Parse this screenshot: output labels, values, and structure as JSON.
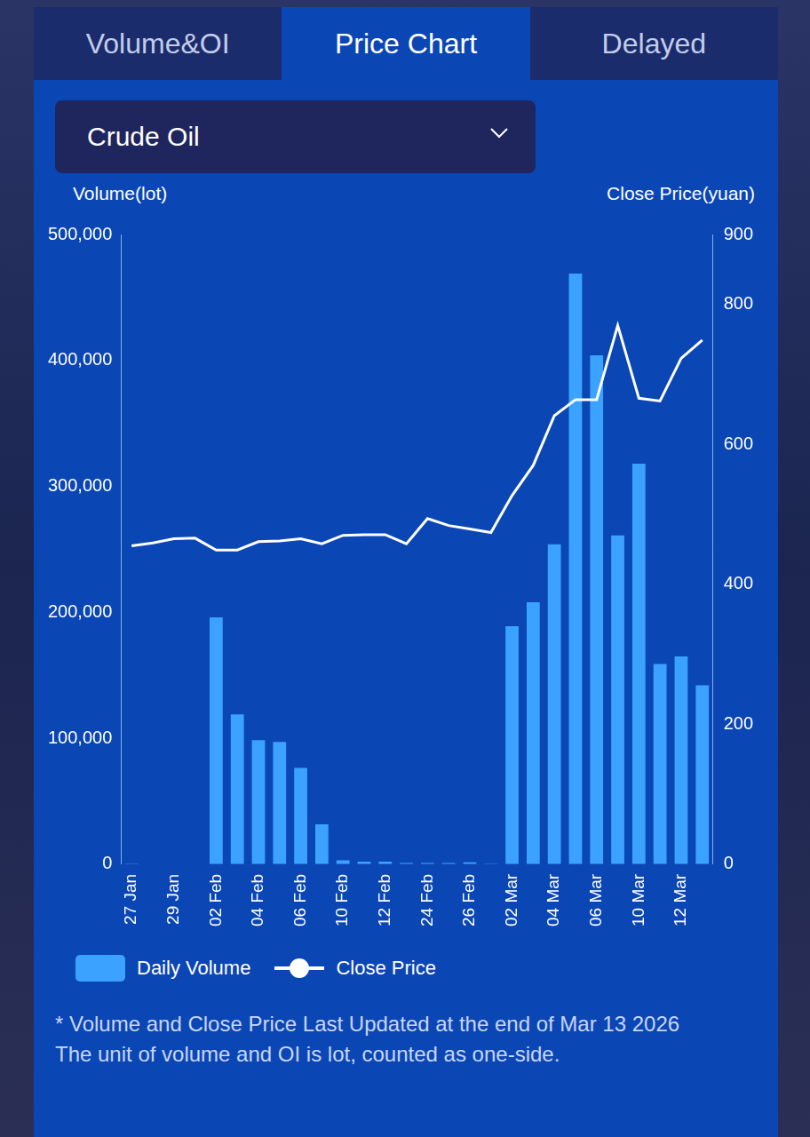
{
  "tabs": [
    {
      "label": "Volume&OI",
      "active": false
    },
    {
      "label": "Price Chart",
      "active": true
    },
    {
      "label": "Delayed",
      "active": false
    }
  ],
  "dropdown": "Crude Oil",
  "chart_data": {
    "type": "bar",
    "y_label": "Volume(lot)",
    "y2_label": "Close Price(yuan)",
    "categories": [
      "27 Jan",
      null,
      "29 Jan",
      null,
      "02 Feb",
      null,
      "04 Feb",
      null,
      "06 Feb",
      null,
      "10 Feb",
      null,
      "12 Feb",
      null,
      "24 Feb",
      null,
      "26 Feb",
      null,
      "02 Mar",
      null,
      "04 Mar",
      null,
      "06 Mar",
      null,
      "10 Mar",
      null,
      "12 Mar",
      null
    ],
    "series": [
      {
        "name": "Daily Volume",
        "type": "bar",
        "color": "#3ba3ff",
        "values": [
          500,
          0,
          0,
          0,
          196000,
          119000,
          98500,
          97000,
          76500,
          31600,
          3000,
          2000,
          2000,
          1000,
          1000,
          1000,
          1500,
          500,
          189000,
          208000,
          254000,
          469000,
          404000,
          261000,
          318000,
          159000,
          165000,
          142000
        ]
      },
      {
        "name": "Close Price",
        "type": "line",
        "axis": "y2",
        "color": "#ffffff",
        "values": [
          455,
          459,
          465,
          466,
          449,
          449,
          461,
          462,
          465,
          458,
          470,
          471,
          471,
          458,
          494,
          484,
          479,
          474,
          527,
          570,
          641,
          664,
          664,
          770,
          666,
          662,
          723,
          749
        ]
      }
    ],
    "ylim": [
      0,
      500000
    ],
    "yticks": [
      0,
      {
        "value": 100000,
        "label": "100,000"
      },
      {
        "value": 200000,
        "label": "200,000"
      },
      {
        "value": 300000,
        "label": "300,000"
      },
      {
        "value": 400000,
        "label": "400,000"
      },
      {
        "value": 500000,
        "label": "500,000"
      }
    ],
    "y2lim": [
      0,
      900
    ],
    "y2ticks": [
      0,
      200,
      400,
      600,
      800,
      900
    ],
    "grid": false,
    "legend": "bottom"
  },
  "notes": [
    "* Volume and Close Price Last Updated at the end of Mar 13 2026",
    "The unit of volume and OI is lot, counted as one-side."
  ]
}
